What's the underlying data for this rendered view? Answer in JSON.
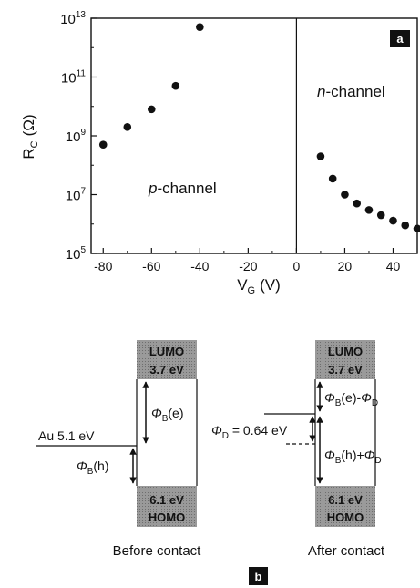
{
  "chart_data": {
    "type": "scatter",
    "panel_label": "a",
    "xlabel": "V",
    "xlabel_sub": "G",
    "xlabel_unit": "(V)",
    "ylabel": "R",
    "ylabel_sub": "C",
    "ylabel_unit": "(Ω)",
    "yscale": "log",
    "xlim": [
      -85,
      50
    ],
    "ylim": [
      100000,
      10000000000000
    ],
    "grid": false,
    "divider_x": 0,
    "x_ticks": [
      -80,
      -60,
      -40,
      -20,
      0,
      20,
      40
    ],
    "x_tick_labels": [
      "-80",
      "-60",
      "-40",
      "-20",
      "0",
      "20",
      "40"
    ],
    "y_ticks": [
      100000,
      10000000,
      1000000000,
      100000000000,
      10000000000000
    ],
    "y_tick_exponents": [
      "5",
      "7",
      "9",
      "11",
      "13"
    ],
    "y_tick_base": "10",
    "series": [
      {
        "x": [
          -80,
          -70,
          -60,
          -50,
          -40,
          10,
          15,
          20,
          25,
          30,
          35,
          40,
          45,
          50
        ],
        "y": [
          500000000,
          2000000000,
          8000000000,
          50000000000,
          5000000000000,
          200000000,
          35000000,
          10000000,
          5000000,
          3000000,
          2000000,
          1300000,
          900000,
          700000
        ]
      }
    ],
    "annotations": {
      "p_italic": "p",
      "p_rest": "-channel",
      "n_italic": "n",
      "n_rest": "-channel"
    }
  },
  "diagram": {
    "panel_label": "b",
    "before": {
      "caption": "Before contact",
      "lumo_line1": "LUMO",
      "lumo_line2": "3.7 eV",
      "homo_line1": "6.1 eV",
      "homo_line2": "HOMO",
      "au_label": "Au 5.1 eV",
      "phi_sym": "Φ",
      "phi_sub": "B",
      "phi_e_suffix": "(e)",
      "phi_h_suffix": "(h)"
    },
    "after": {
      "caption": "After contact",
      "lumo_line1": "LUMO",
      "lumo_line2": "3.7 eV",
      "homo_line1": "6.1 eV",
      "homo_line2": "HOMO",
      "phi_sym": "Φ",
      "phi_sub_b": "B",
      "phi_sub_d": "D",
      "e_suffix": "(e)-",
      "h_suffix": "(h)+",
      "d_value": " = 0.64 eV"
    }
  }
}
